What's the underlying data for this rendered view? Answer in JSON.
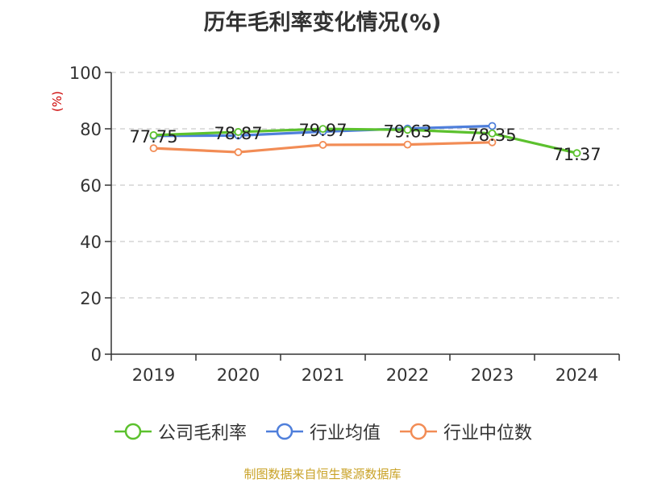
{
  "title": "历年毛利率变化情况(%)",
  "source": "制图数据来自恒生聚源数据库",
  "chart_data": {
    "type": "line",
    "title": "历年毛利率变化情况(%)",
    "xlabel": "",
    "ylabel": "(%)",
    "categories": [
      "2019",
      "2020",
      "2021",
      "2022",
      "2023",
      "2024"
    ],
    "ylim": [
      0,
      100
    ],
    "yticks": [
      0,
      20,
      40,
      60,
      80,
      100
    ],
    "grid": true,
    "legend_position": "bottom",
    "series": [
      {
        "name": "公司毛利率",
        "color": "#5cc12e",
        "values": [
          77.75,
          78.87,
          79.97,
          79.63,
          78.35,
          71.37
        ],
        "labels": [
          "77.75",
          "78.87",
          "79.97",
          "79.63",
          "78.35",
          "71.37"
        ]
      },
      {
        "name": "行业均值",
        "color": "#4f7fdb",
        "values": [
          77.5,
          77.6,
          79.0,
          80.1,
          81.0,
          null
        ]
      },
      {
        "name": "行业中位数",
        "color": "#f28c55",
        "values": [
          73.1,
          71.7,
          74.3,
          74.4,
          75.2,
          null
        ]
      }
    ]
  }
}
